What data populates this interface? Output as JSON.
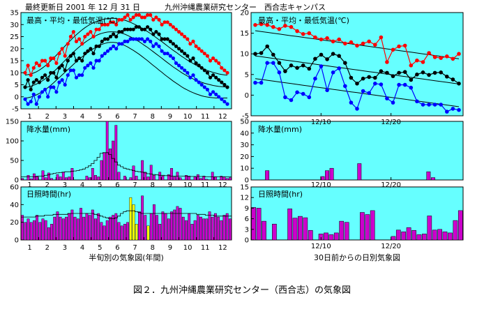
{
  "header": {
    "updated": "最終更新日 2001 年 12 月 31 日",
    "station": "九州沖縄農業研究センター　西合志キャンパス"
  },
  "caption": "図２．九州沖縄農業研究センター（西合志）の気象図",
  "colors": {
    "panel_bg": "#66ffff",
    "max": "#ff0000",
    "mean": "#000000",
    "min": "#0000ff",
    "bar": "#cc00cc",
    "bar_highlight": "#ffff00"
  },
  "chart_data": [
    {
      "id": "left-temp",
      "type": "line",
      "title": "最高・平均・最低気温(℃)",
      "x": [
        1,
        2,
        3,
        4,
        5,
        6,
        7,
        8,
        9,
        10,
        11,
        12,
        13,
        14,
        15,
        16,
        17,
        18,
        19,
        20,
        21,
        22,
        23,
        24,
        25,
        26,
        27,
        28,
        29,
        30,
        31,
        32,
        33,
        34,
        35,
        36,
        37,
        38,
        39,
        40,
        41,
        42,
        43,
        44,
        45,
        46,
        47,
        48,
        49,
        50,
        51,
        52,
        53,
        54,
        55,
        56,
        57,
        58,
        59,
        60,
        61,
        62,
        63,
        64,
        65,
        66,
        67,
        68,
        69,
        70,
        71,
        72
      ],
      "xticks": [
        "1",
        "2",
        "3",
        "4",
        "5",
        "6",
        "7",
        "8",
        "9",
        "10",
        "11",
        "12"
      ],
      "ylim": [
        -5,
        35
      ],
      "yticks": [
        -5,
        0,
        5,
        10,
        15,
        20,
        25,
        30,
        35
      ],
      "series": [
        {
          "key": "max",
          "values": [
            10,
            13,
            9,
            12,
            14,
            13,
            15,
            15,
            13,
            16,
            16,
            14,
            18,
            20,
            17,
            22,
            25,
            27,
            23,
            24,
            22,
            25,
            26,
            27,
            25,
            28,
            28,
            30,
            30,
            30,
            31,
            31,
            30,
            32,
            32,
            33,
            34,
            32,
            33,
            34,
            34,
            33,
            33,
            34,
            34,
            32,
            33,
            32,
            30,
            31,
            31,
            30,
            29,
            28,
            27,
            26,
            25,
            24,
            22,
            23,
            21,
            20,
            19,
            18,
            17,
            15,
            16,
            15,
            14,
            12,
            11,
            10
          ]
        },
        {
          "key": "mean",
          "values": [
            4,
            7,
            3,
            6,
            7,
            6,
            8,
            9,
            7,
            10,
            10,
            8,
            12,
            13,
            11,
            15,
            17,
            18,
            15,
            16,
            15,
            18,
            19,
            20,
            18,
            21,
            21,
            23,
            24,
            24,
            25,
            26,
            25,
            27,
            27,
            28,
            28,
            28,
            28,
            29,
            29,
            28,
            28,
            29,
            28,
            26,
            27,
            26,
            24,
            24,
            24,
            23,
            22,
            21,
            20,
            19,
            18,
            17,
            15,
            16,
            14,
            13,
            12,
            11,
            10,
            8,
            9,
            8,
            7,
            6,
            5,
            4
          ]
        },
        {
          "key": "min",
          "values": [
            -1,
            -3,
            -2,
            1,
            -3,
            0,
            2,
            3,
            0,
            4,
            4,
            2,
            6,
            7,
            5,
            9,
            11,
            11,
            8,
            9,
            9,
            12,
            13,
            14,
            12,
            15,
            15,
            17,
            18,
            19,
            20,
            21,
            20,
            22,
            22,
            23,
            23,
            24,
            24,
            24,
            24,
            24,
            23,
            24,
            23,
            21,
            22,
            21,
            19,
            18,
            18,
            17,
            16,
            14,
            13,
            12,
            11,
            10,
            8,
            9,
            7,
            6,
            5,
            4,
            3,
            1,
            2,
            1,
            0,
            -1,
            -2,
            -3
          ]
        },
        {
          "key": "max_avg",
          "values": [
            9.0,
            9.2,
            9.5,
            9.9,
            10.4,
            11.1,
            11.9,
            12.8,
            13.8,
            14.9,
            16.1,
            17.3,
            18.6,
            19.8,
            21.1,
            22.3,
            23.5,
            24.7,
            25.8,
            26.8,
            27.8,
            28.7,
            29.5,
            30.2,
            30.8,
            31.3,
            31.7,
            32.1,
            32.3,
            32.5,
            32.6,
            32.6,
            32.5,
            32.3,
            32.1,
            31.8,
            31.4,
            30.9,
            30.4,
            29.8,
            29.2,
            28.5,
            27.8,
            27.1,
            26.3,
            25.5,
            24.6,
            23.7,
            22.9,
            22.0,
            21.1,
            20.2,
            19.3,
            18.5,
            17.6,
            16.8,
            16.0,
            15.2,
            14.5,
            13.8,
            13.1,
            12.5,
            11.9,
            11.4,
            10.9,
            10.5,
            10.1,
            9.8,
            9.5,
            9.3,
            9.1,
            9.0
          ]
        },
        {
          "key": "mean_avg",
          "values": [
            4.0,
            4.1,
            4.4,
            4.8,
            5.3,
            5.9,
            6.6,
            7.4,
            8.3,
            9.3,
            10.4,
            11.5,
            12.7,
            13.9,
            15.1,
            16.3,
            17.5,
            18.6,
            19.7,
            20.7,
            21.7,
            22.6,
            23.4,
            24.2,
            24.9,
            25.5,
            26.0,
            26.4,
            26.7,
            26.9,
            27.0,
            27.0,
            26.9,
            26.7,
            26.4,
            26.0,
            25.5,
            24.9,
            24.3,
            23.6,
            22.9,
            22.1,
            21.3,
            20.5,
            19.6,
            18.7,
            17.8,
            16.9,
            16.0,
            15.1,
            14.2,
            13.3,
            12.4,
            11.6,
            10.8,
            10.0,
            9.3,
            8.6,
            8.0,
            7.4,
            6.9,
            6.4,
            6.0,
            5.6,
            5.3,
            5.0,
            4.7,
            4.5,
            4.3,
            4.2,
            4.1,
            4.0
          ]
        },
        {
          "key": "min_avg",
          "values": [
            -0.5,
            -0.4,
            -0.1,
            0.3,
            0.8,
            1.4,
            2.1,
            2.9,
            3.8,
            4.8,
            5.8,
            6.9,
            8.0,
            9.1,
            10.2,
            11.3,
            12.4,
            13.5,
            14.6,
            15.6,
            16.6,
            17.5,
            18.4,
            19.2,
            20.0,
            20.7,
            21.3,
            21.8,
            22.2,
            22.5,
            22.6,
            22.6,
            22.5,
            22.2,
            21.8,
            21.3,
            20.7,
            20.0,
            19.3,
            18.5,
            17.7,
            16.8,
            15.9,
            15.0,
            14.0,
            13.0,
            12.1,
            11.1,
            10.2,
            9.2,
            8.3,
            7.4,
            6.5,
            5.7,
            4.9,
            4.1,
            3.4,
            2.8,
            2.2,
            1.7,
            1.2,
            0.8,
            0.4,
            0.1,
            -0.1,
            -0.3,
            -0.4,
            -0.5,
            -0.5,
            -0.5,
            -0.5,
            -0.5
          ]
        }
      ]
    },
    {
      "id": "left-precip",
      "type": "bar",
      "title": "降水量(mm)",
      "ylim": [
        0,
        150
      ],
      "yticks": [
        0,
        50,
        100,
        150
      ],
      "values": [
        4,
        0,
        12,
        3,
        16,
        10,
        0,
        24,
        6,
        18,
        4,
        0,
        14,
        8,
        20,
        6,
        8,
        30,
        0,
        0,
        0,
        0,
        10,
        6,
        30,
        12,
        8,
        50,
        70,
        155,
        80,
        100,
        140,
        20,
        0,
        10,
        0,
        6,
        36,
        10,
        0,
        50,
        20,
        8,
        38,
        12,
        0,
        20,
        10,
        0,
        14,
        30,
        8,
        20,
        6,
        0,
        12,
        10,
        0,
        8,
        14,
        4,
        10,
        2,
        0,
        20,
        8,
        0,
        10,
        8,
        4,
        6
      ],
      "highlight": [
        34
      ],
      "normal": [
        8,
        8,
        8,
        8,
        8,
        9,
        10,
        10,
        12,
        13,
        15,
        17,
        18,
        19,
        20,
        21,
        21,
        22,
        23,
        24,
        26,
        28,
        32,
        36,
        42,
        50,
        58,
        68,
        70,
        70,
        65,
        55,
        46,
        38,
        34,
        30,
        28,
        26,
        24,
        22,
        21,
        20,
        18,
        16,
        15,
        14,
        13,
        12,
        12,
        11,
        11,
        10,
        10,
        10,
        10,
        10,
        10,
        9,
        9,
        9,
        9,
        9,
        9,
        8,
        8,
        8,
        8,
        8,
        8,
        8,
        8,
        8
      ],
      "xticks": [
        "1",
        "2",
        "3",
        "4",
        "5",
        "6",
        "7",
        "8",
        "9",
        "10",
        "11",
        "12"
      ]
    },
    {
      "id": "left-sun",
      "type": "bar",
      "title": "日照時間(hr)",
      "ylim": [
        0,
        60
      ],
      "yticks": [
        0,
        20,
        40,
        60
      ],
      "values": [
        28,
        20,
        24,
        20,
        22,
        28,
        20,
        24,
        22,
        14,
        18,
        26,
        32,
        26,
        24,
        26,
        30,
        34,
        26,
        24,
        36,
        26,
        30,
        28,
        34,
        24,
        30,
        20,
        16,
        22,
        26,
        28,
        30,
        20,
        16,
        18,
        20,
        48,
        40,
        18,
        32,
        50,
        28,
        16,
        30,
        40,
        28,
        18,
        32,
        30,
        24,
        32,
        34,
        38,
        36,
        26,
        22,
        30,
        18,
        22,
        28,
        26,
        24,
        24,
        32,
        26,
        30,
        26,
        22,
        28,
        30,
        24
      ],
      "highlight": [
        37,
        38,
        39,
        43
      ],
      "normal": [
        26,
        26,
        26,
        26,
        26,
        27,
        27,
        27,
        28,
        28,
        28,
        29,
        29,
        29,
        29,
        29,
        30,
        30,
        30,
        30,
        30,
        30,
        30,
        30,
        30,
        29,
        28,
        27,
        26,
        25,
        24,
        24,
        25,
        27,
        30,
        32,
        33,
        33,
        33,
        32,
        31,
        30,
        30,
        30,
        30,
        30,
        30,
        30,
        30,
        30,
        30,
        30,
        30,
        30,
        30,
        30,
        30,
        30,
        30,
        30,
        29,
        29,
        29,
        28,
        28,
        28,
        27,
        27,
        27,
        27,
        27,
        27
      ],
      "xticks": [
        "1",
        "2",
        "3",
        "4",
        "5",
        "6",
        "7",
        "8",
        "9",
        "10",
        "11",
        "12"
      ],
      "xlabel": "半旬別の気象図(年間)"
    },
    {
      "id": "right-temp",
      "type": "line",
      "title": "最高・平均・最低気温(℃)",
      "ylim": [
        -5,
        20
      ],
      "yticks": [
        -5,
        0,
        5,
        10,
        15,
        20
      ],
      "xticks": [
        "12/10",
        "12/20"
      ],
      "series": [
        {
          "key": "max",
          "values": [
            17,
            17.2,
            17,
            16.5,
            16,
            16.8,
            16.5,
            15.5,
            14.8,
            15,
            14,
            13.5,
            13.8,
            13,
            13.5,
            12.5,
            12.8,
            12,
            12.5,
            13,
            12.2,
            14,
            8,
            11,
            11.8,
            12,
            7.2,
            8.4,
            8,
            10.2,
            9.2,
            9,
            9.4,
            8.8,
            10
          ]
        },
        {
          "key": "mean",
          "values": [
            10,
            10.2,
            11.8,
            9.8,
            7.8,
            5.8,
            7.2,
            6.6,
            7.2,
            6.4,
            8.8,
            9.8,
            8.7,
            10,
            9.5,
            7.8,
            4.2,
            2.8,
            4,
            4.4,
            4.2,
            5.8,
            5.4,
            4.6,
            5.4,
            5.6,
            3.7,
            5,
            5.5,
            4.9,
            5.4,
            5.5,
            4.5,
            3.8,
            2.8
          ]
        },
        {
          "key": "min",
          "values": [
            3,
            3,
            7.8,
            7.8,
            5.5,
            -0.5,
            -1.2,
            0.7,
            0.3,
            -0.5,
            4,
            7,
            1.2,
            5.5,
            6.5,
            2.2,
            -1.8,
            -3.3,
            1,
            0.5,
            2.8,
            2.6,
            -0.8,
            -1.8,
            2.5,
            2.5,
            1.8,
            -1.5,
            -2.3,
            -2.3,
            -2.3,
            -2.3,
            -4,
            -3.3,
            -3.6
          ]
        },
        {
          "key": "max_trend",
          "values": [
            15.6,
            15.4,
            15.2,
            15.0,
            14.8,
            14.6,
            14.4,
            14.2,
            14.0,
            13.8,
            13.6,
            13.4,
            13.2,
            13.0,
            12.8,
            12.6,
            12.4,
            12.2,
            12.0,
            11.8,
            11.6,
            11.4,
            11.2,
            11.0,
            10.8,
            10.6,
            10.4,
            10.2,
            10.0,
            9.8,
            9.6,
            9.4,
            9.2,
            9.0,
            8.8
          ]
        },
        {
          "key": "mean_trend",
          "values": [
            9.5,
            9.3,
            9.1,
            8.9,
            8.7,
            8.5,
            8.3,
            8.1,
            7.9,
            7.7,
            7.5,
            7.3,
            7.1,
            6.9,
            6.7,
            6.5,
            6.3,
            6.1,
            5.9,
            5.7,
            5.5,
            5.3,
            5.1,
            4.9,
            4.7,
            4.5,
            4.3,
            4.1,
            3.9,
            3.7,
            3.5,
            3.3,
            3.1,
            2.9,
            2.7
          ]
        },
        {
          "key": "min_trend",
          "values": [
            4.0,
            3.8,
            3.6,
            3.4,
            3.2,
            3.0,
            2.8,
            2.6,
            2.4,
            2.2,
            2.0,
            1.8,
            1.6,
            1.4,
            1.2,
            1.0,
            0.8,
            0.6,
            0.4,
            0.2,
            0.0,
            -0.2,
            -0.4,
            -0.6,
            -0.8,
            -1.0,
            -1.2,
            -1.4,
            -1.6,
            -1.8,
            -2.0,
            -2.2,
            -2.4,
            -2.6,
            -2.8
          ]
        }
      ]
    },
    {
      "id": "right-precip",
      "type": "bar",
      "title": "降水量(mm)",
      "ylim": [
        0,
        50
      ],
      "yticks": [
        0,
        10,
        20,
        30,
        40,
        50
      ],
      "xticks": [
        "12/10",
        "12/20"
      ],
      "values": [
        0,
        0,
        0,
        8,
        0,
        0,
        0,
        0,
        0,
        0,
        0,
        0,
        0,
        0,
        0,
        3,
        8,
        10,
        0,
        0,
        0,
        0,
        0,
        14,
        0,
        0,
        0,
        0,
        0,
        0,
        0,
        0,
        0,
        0,
        0,
        0,
        0,
        0,
        7,
        2,
        0,
        0,
        0,
        0,
        0,
        0
      ]
    },
    {
      "id": "right-sun",
      "type": "bar",
      "title": "日照時間(hr)",
      "ylim": [
        0,
        15
      ],
      "yticks": [
        0,
        3,
        6,
        9,
        12,
        15
      ],
      "xticks": [
        "12/10",
        "12/20"
      ],
      "values": [
        9.2,
        9,
        5.3,
        0,
        4.5,
        0,
        0,
        8.8,
        6.2,
        6.7,
        6.3,
        2.7,
        0,
        1.7,
        2,
        1.5,
        2,
        5.3,
        5,
        0,
        0,
        7.8,
        7.2,
        8.3,
        0,
        0,
        0,
        1,
        2.8,
        2.3,
        3.5,
        2.7,
        1.5,
        1.7,
        6.8,
        2.8,
        3,
        2.3,
        2,
        5.5,
        8.3
      ],
      "xlabel": "30日前からの日別気象図"
    }
  ]
}
